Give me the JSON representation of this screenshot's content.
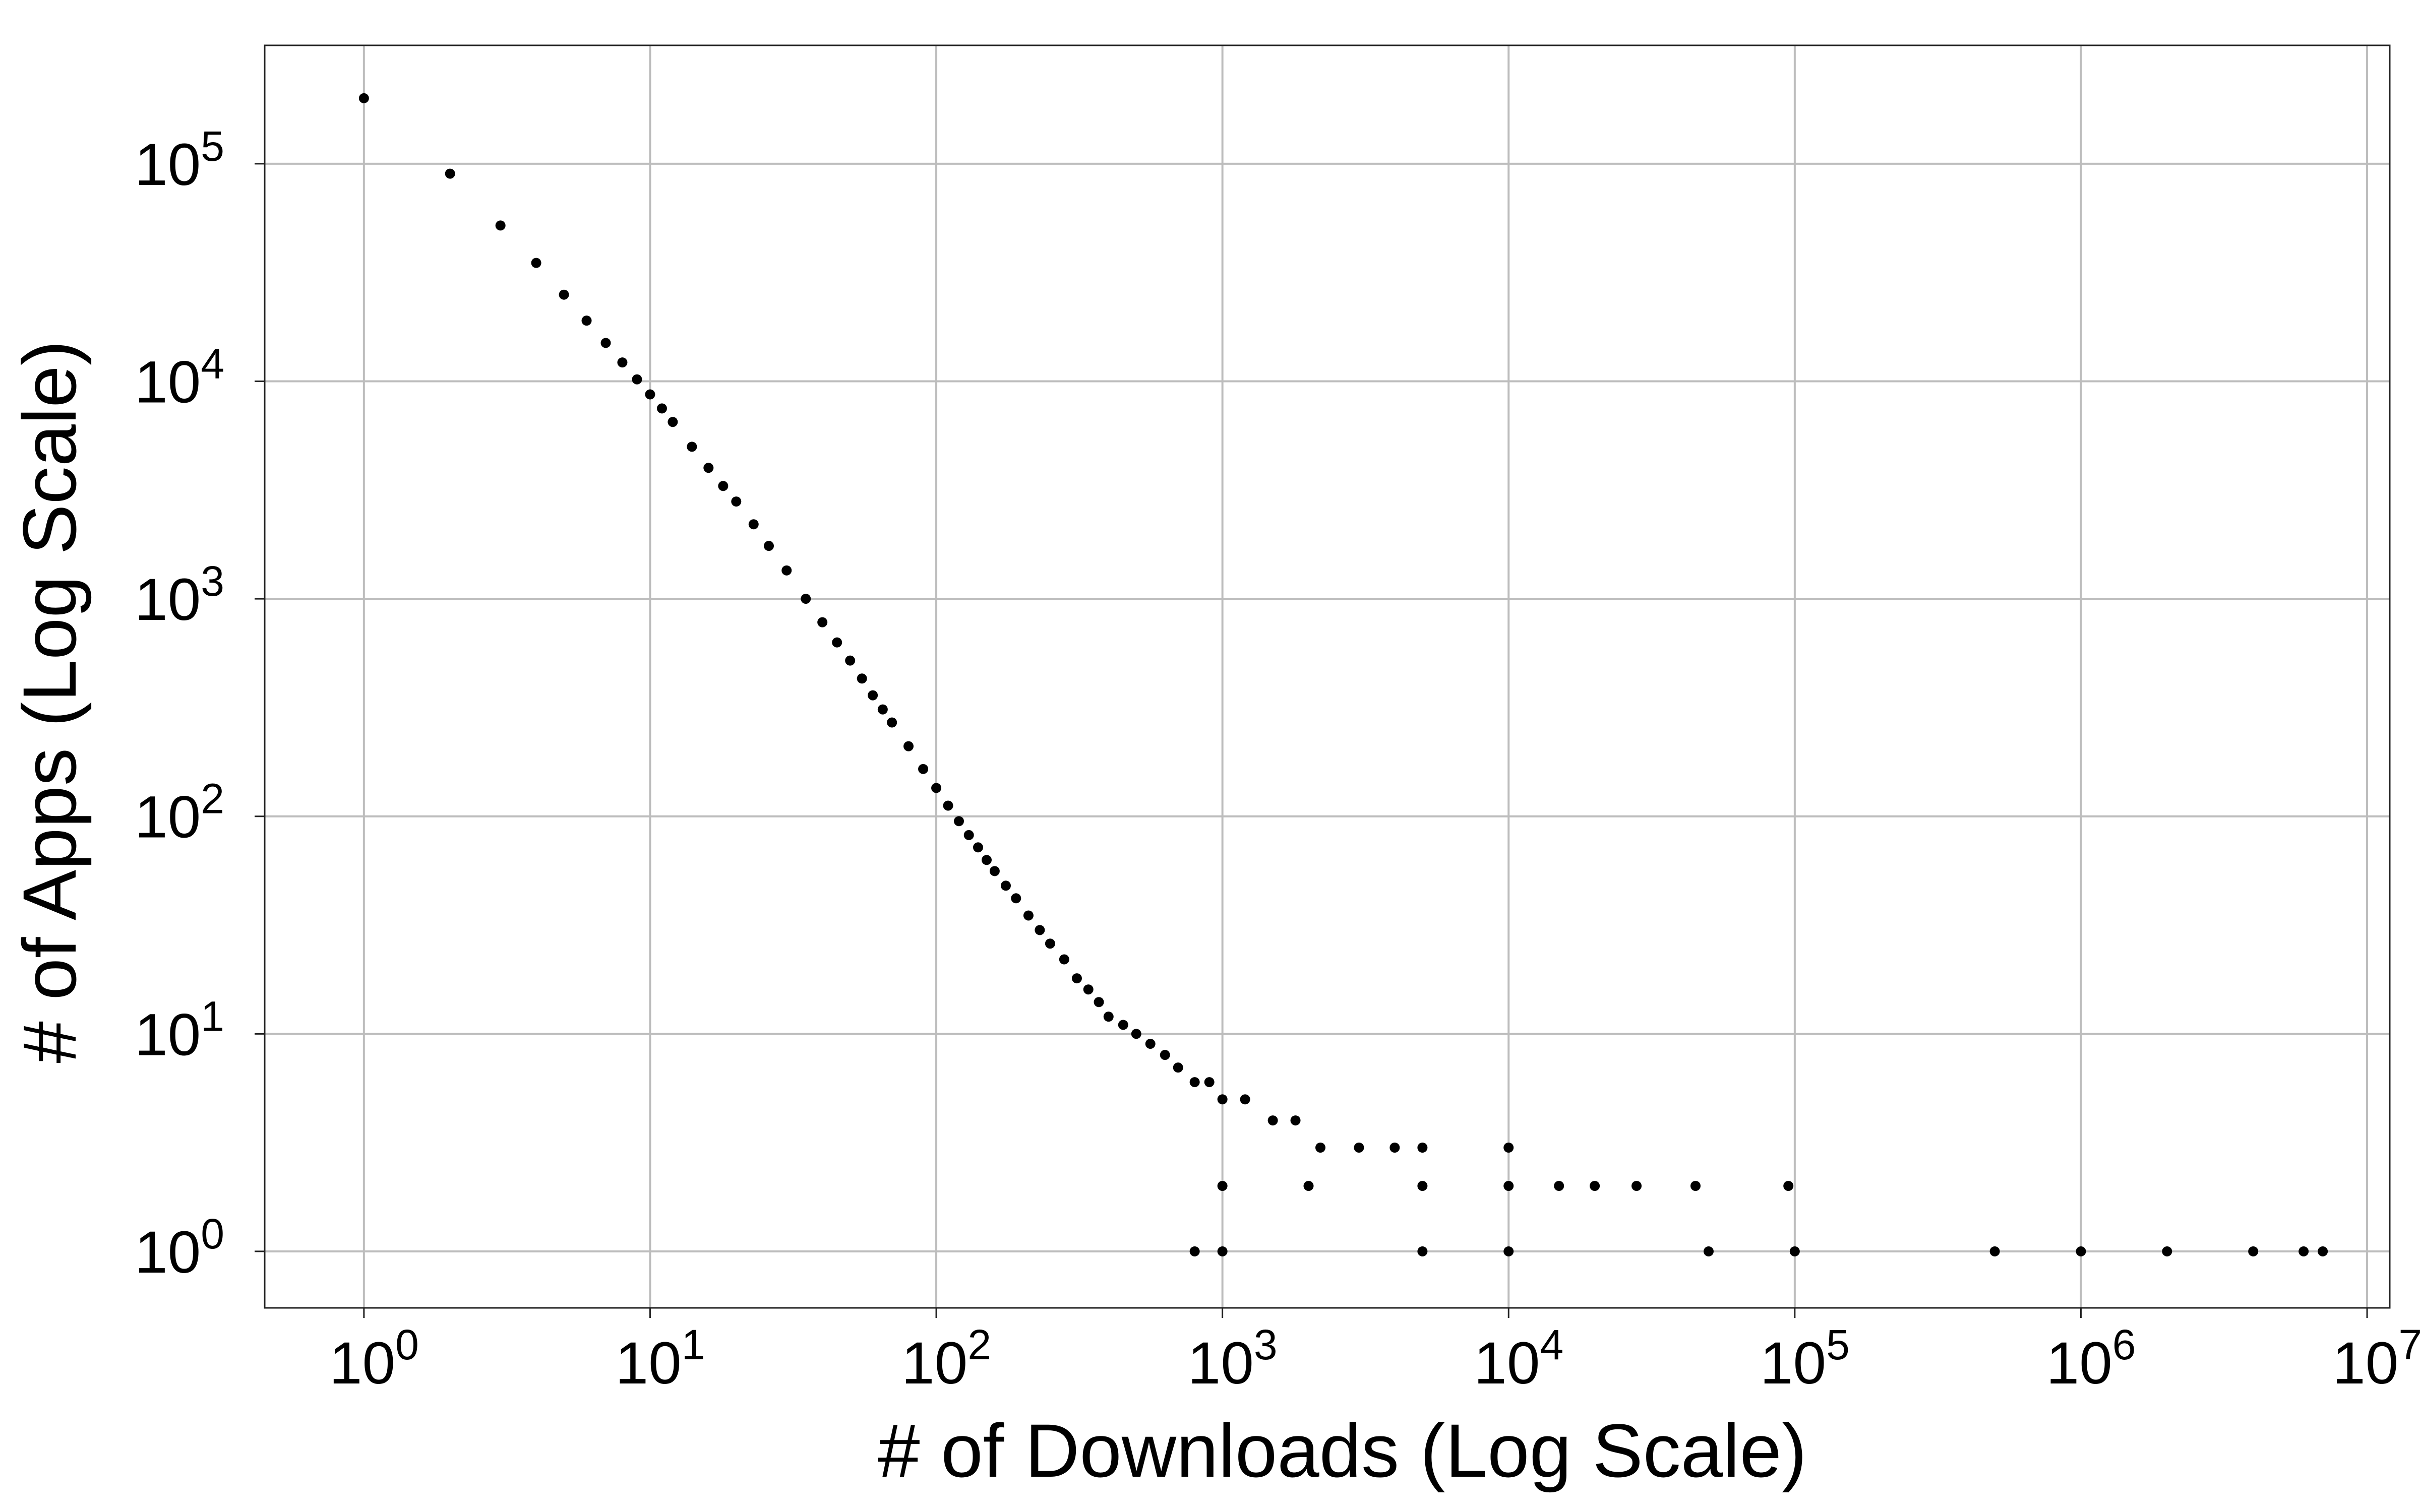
{
  "chart_data": {
    "type": "scatter",
    "title": "",
    "xlabel": "# of Downloads (Log Scale)",
    "ylabel": "# of Apps (Log Scale)",
    "x_scale": "log10",
    "y_scale": "log10",
    "xlim": [
      0.45,
      12000000
    ],
    "ylim": [
      0.55,
      350000
    ],
    "grid": true,
    "legend": "none",
    "x_ticks": [
      {
        "base": "10",
        "exp": "0",
        "value": 1
      },
      {
        "base": "10",
        "exp": "1",
        "value": 10
      },
      {
        "base": "10",
        "exp": "2",
        "value": 100
      },
      {
        "base": "10",
        "exp": "3",
        "value": 1000
      },
      {
        "base": "10",
        "exp": "4",
        "value": 10000
      },
      {
        "base": "10",
        "exp": "5",
        "value": 100000
      },
      {
        "base": "10",
        "exp": "6",
        "value": 1000000
      },
      {
        "base": "10",
        "exp": "7",
        "value": 10000000
      }
    ],
    "y_ticks": [
      {
        "base": "10",
        "exp": "0",
        "value": 1
      },
      {
        "base": "10",
        "exp": "1",
        "value": 10
      },
      {
        "base": "10",
        "exp": "2",
        "value": 100
      },
      {
        "base": "10",
        "exp": "3",
        "value": 1000
      },
      {
        "base": "10",
        "exp": "4",
        "value": 10000
      },
      {
        "base": "10",
        "exp": "5",
        "value": 100000
      }
    ],
    "point_color": "#000000",
    "series": [
      {
        "points": [
          [
            1,
            200000
          ],
          [
            2,
            90000
          ],
          [
            3,
            52000
          ],
          [
            4,
            35000
          ],
          [
            5,
            25000
          ],
          [
            6,
            19000
          ],
          [
            7,
            15000
          ],
          [
            8,
            12200
          ],
          [
            9,
            10200
          ],
          [
            10,
            8700
          ],
          [
            11,
            7500
          ],
          [
            12,
            6500
          ],
          [
            14,
            5000
          ],
          [
            16,
            4000
          ],
          [
            18,
            3300
          ],
          [
            20,
            2800
          ],
          [
            23,
            2200
          ],
          [
            26,
            1750
          ],
          [
            30,
            1350
          ],
          [
            35,
            1000
          ],
          [
            40,
            780
          ],
          [
            45,
            630
          ],
          [
            50,
            520
          ],
          [
            55,
            430
          ],
          [
            60,
            360
          ],
          [
            65,
            310
          ],
          [
            70,
            270
          ],
          [
            80,
            210
          ],
          [
            90,
            165
          ],
          [
            100,
            135
          ],
          [
            110,
            112
          ],
          [
            120,
            95
          ],
          [
            130,
            82
          ],
          [
            140,
            72
          ],
          [
            150,
            63
          ],
          [
            160,
            56
          ],
          [
            175,
            48
          ],
          [
            190,
            42
          ],
          [
            210,
            35
          ],
          [
            230,
            30
          ],
          [
            250,
            26
          ],
          [
            280,
            22
          ],
          [
            310,
            18
          ],
          [
            340,
            16
          ],
          [
            370,
            14
          ],
          [
            400,
            12
          ],
          [
            450,
            11
          ],
          [
            500,
            10
          ],
          [
            560,
            9
          ],
          [
            630,
            8
          ],
          [
            700,
            7
          ],
          [
            800,
            6
          ],
          [
            900,
            6
          ],
          [
            1000,
            5
          ],
          [
            1200,
            5
          ],
          [
            1500,
            4
          ],
          [
            1800,
            4
          ],
          [
            2200,
            3
          ],
          [
            3000,
            3
          ],
          [
            4000,
            3
          ],
          [
            5000,
            3
          ],
          [
            10000,
            3
          ],
          [
            1000,
            2
          ],
          [
            2000,
            2
          ],
          [
            5000,
            2
          ],
          [
            10000,
            2
          ],
          [
            15000,
            2
          ],
          [
            20000,
            2
          ],
          [
            28000,
            2
          ],
          [
            45000,
            2
          ],
          [
            95000,
            2
          ],
          [
            800,
            1
          ],
          [
            1000,
            1
          ],
          [
            5000,
            1
          ],
          [
            10000,
            1
          ],
          [
            50000,
            1
          ],
          [
            100000,
            1
          ],
          [
            500000,
            1
          ],
          [
            1000000,
            1
          ],
          [
            2000000,
            1
          ],
          [
            4000000,
            1
          ],
          [
            6000000,
            1
          ],
          [
            7000000,
            1
          ]
        ]
      }
    ]
  }
}
